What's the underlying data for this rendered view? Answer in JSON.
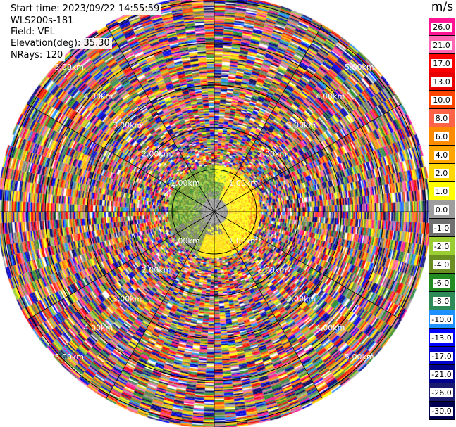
{
  "info": {
    "start_time": "Start time: 2023/09/22 14:55:59",
    "site": "WLS200s-181",
    "field": "Field: VEL",
    "elevation": "Elevation(deg): 35.30",
    "nrays": "NRays: 120"
  },
  "colorbar": {
    "unit": "m/s",
    "levels": [
      "26.0",
      "21.0",
      "17.0",
      "13.0",
      "10.0",
      "8.0",
      "6.0",
      "4.0",
      "2.0",
      "1.0",
      "0.0",
      "-1.0",
      "-2.0",
      "-4.0",
      "-6.0",
      "-8.0",
      "-10.0",
      "-13.0",
      "-17.0",
      "-21.0",
      "-26.0",
      "-30.0"
    ],
    "colors": [
      "#ff1493",
      "#ff69b4",
      "#ff0000",
      "#e80000",
      "#ff4500",
      "#ff6347",
      "#ff8c00",
      "#ffa500",
      "#ffd700",
      "#ffff00",
      "#9e9e9e",
      "#707070",
      "#9acd32",
      "#6b8e23",
      "#228b22",
      "#2e8b57",
      "#1e90ff",
      "#0000ff",
      "#0000cd",
      "#00008b",
      "#191970",
      "#000050"
    ]
  },
  "chart_data": {
    "type": "ppi",
    "field": "VEL",
    "units": "m/s",
    "elevation_deg": 35.3,
    "nrays": 120,
    "range_rings_km": [
      1.0,
      2.0,
      3.0,
      4.0,
      5.0
    ],
    "ring_labels": [
      "1.00km",
      "2.00km",
      "3.00km",
      "4.00km",
      "5.00km"
    ],
    "max_range_km": 5.1,
    "data_max_range_km": 1.1,
    "spokes_deg": [
      0,
      30,
      60,
      90,
      120,
      150,
      180,
      210,
      240,
      270,
      300,
      330
    ],
    "near_field_pattern": "gray core, green west, yellow/orange east, noisy beyond ~1.1 km"
  }
}
